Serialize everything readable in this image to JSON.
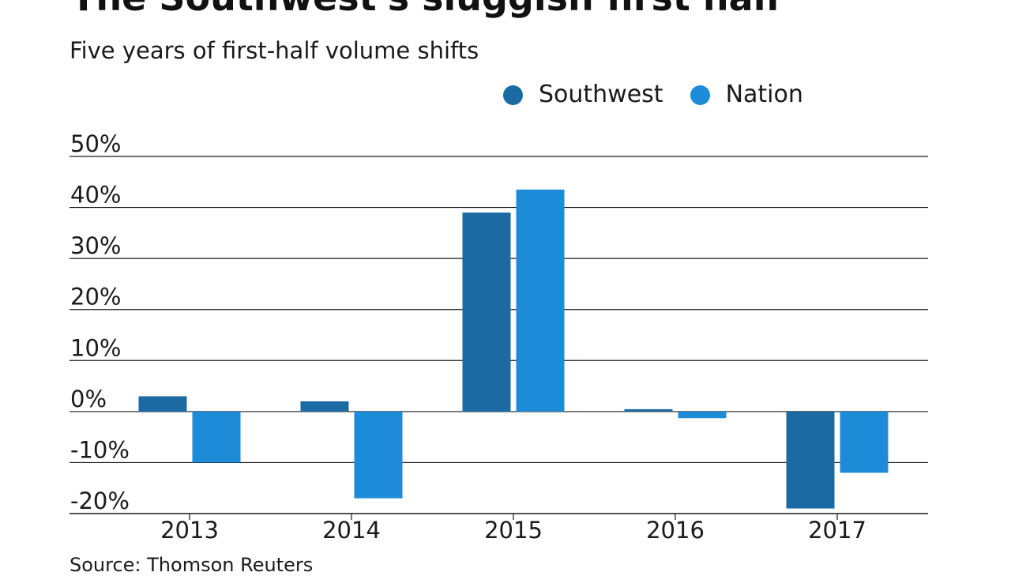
{
  "chart_data": {
    "type": "bar",
    "title": "The Southwest's sluggish first half",
    "subtitle": "Five years of first-half volume shifts",
    "source": "Source: Thomson Reuters",
    "categories": [
      "2013",
      "2014",
      "2015",
      "2016",
      "2017"
    ],
    "series": [
      {
        "name": "Southwest",
        "color": "#1c6aa3",
        "values": [
          3,
          2,
          39,
          0.3,
          -19
        ]
      },
      {
        "name": "Nation",
        "color": "#1d8bd8",
        "values": [
          -10,
          -17,
          43.5,
          -1.3,
          -12
        ]
      }
    ],
    "ylim": [
      -20,
      50
    ],
    "y_ticks": [
      50,
      40,
      30,
      20,
      10,
      0,
      -10,
      -20
    ],
    "y_tick_labels": [
      "50%",
      "40%",
      "30%",
      "20%",
      "10%",
      "0%",
      "-10%",
      "-20%"
    ],
    "legend_position": "top-right",
    "grid": true,
    "xlabel": "",
    "ylabel": ""
  }
}
